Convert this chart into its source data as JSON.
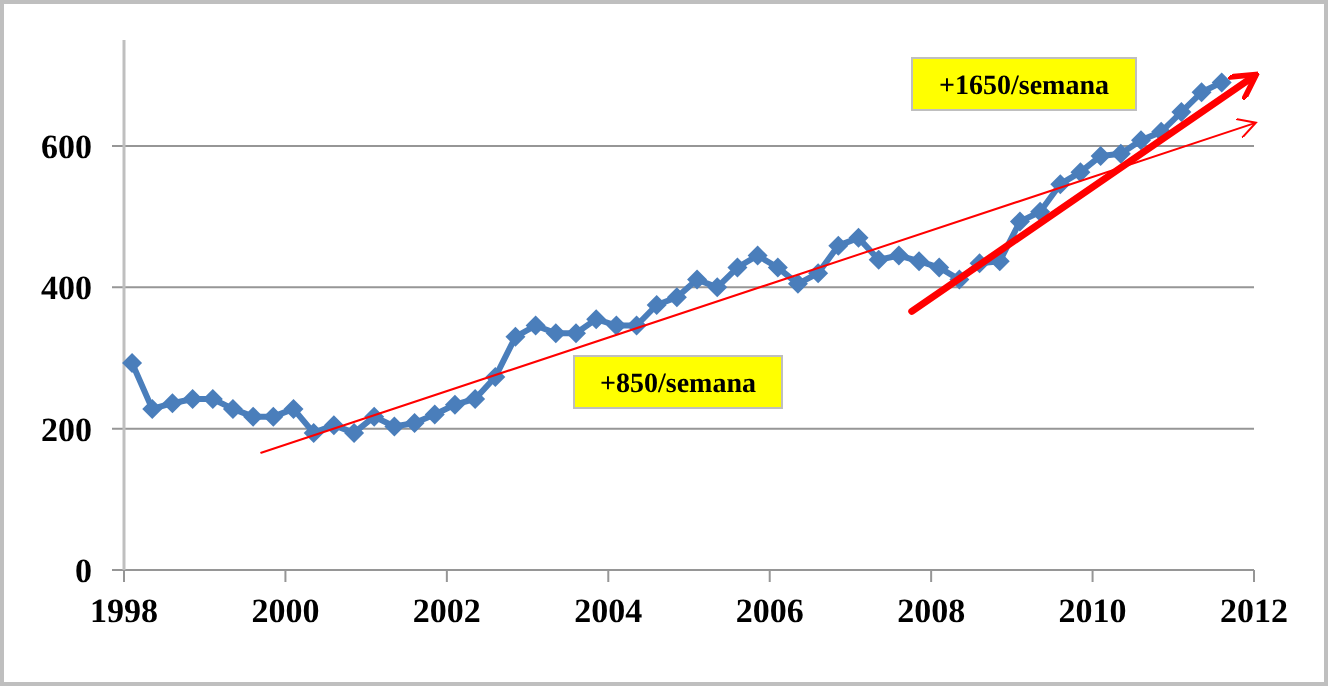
{
  "chart_data": {
    "type": "line",
    "x": [
      1998.1,
      1998.35,
      1998.6,
      1998.85,
      1999.1,
      1999.35,
      1999.6,
      1999.85,
      2000.1,
      2000.35,
      2000.6,
      2000.85,
      2001.1,
      2001.35,
      2001.6,
      2001.85,
      2002.1,
      2002.35,
      2002.6,
      2002.85,
      2003.1,
      2003.35,
      2003.6,
      2003.85,
      2004.1,
      2004.35,
      2004.6,
      2004.85,
      2005.1,
      2005.35,
      2005.6,
      2005.85,
      2006.1,
      2006.35,
      2006.6,
      2006.85,
      2007.1,
      2007.35,
      2007.6,
      2007.85,
      2008.1,
      2008.35,
      2008.6,
      2008.85,
      2009.1,
      2009.35,
      2009.6,
      2009.85,
      2010.1,
      2010.35,
      2010.6,
      2010.85,
      2011.1,
      2011.35,
      2011.6
    ],
    "series": [
      {
        "color": "#4a7ebb",
        "marker": "diamond",
        "values": [
          293,
          228,
          236,
          242,
          242,
          228,
          217,
          217,
          228,
          194,
          205,
          194,
          217,
          203,
          208,
          220,
          234,
          242,
          273,
          330,
          346,
          335,
          335,
          355,
          346,
          346,
          375,
          386,
          411,
          400,
          428,
          445,
          428,
          405,
          420,
          459,
          470,
          439,
          445,
          437,
          428,
          411,
          434,
          437,
          493,
          507,
          546,
          563,
          586,
          589,
          608,
          620,
          648,
          676,
          690
        ]
      },
      {
        "type": "line",
        "color": "#ff0000",
        "marker": "none",
        "x": [
          1999.7,
          2012
        ],
        "values": [
          166,
          632
        ]
      },
      {
        "type": "line",
        "color": "#ff0000",
        "marker": "none",
        "x": [
          2007.76,
          2012
        ],
        "values": [
          366,
          699
        ]
      }
    ],
    "xlim": [
      1998,
      2012
    ],
    "xticks": [
      1998,
      2000,
      2002,
      2004,
      2006,
      2008,
      2010,
      2012
    ],
    "ylim": [
      0,
      750
    ],
    "yticks": [
      0,
      200,
      400,
      600
    ],
    "grid": "y",
    "annotations": [
      "+850/semana",
      "+1650/semana"
    ]
  }
}
